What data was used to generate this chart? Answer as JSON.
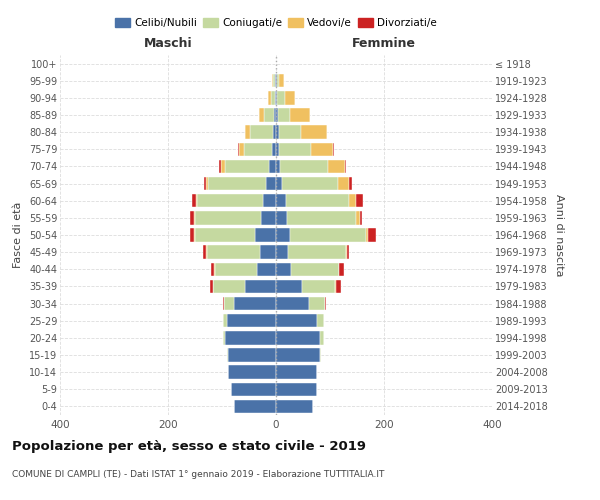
{
  "age_groups": [
    "0-4",
    "5-9",
    "10-14",
    "15-19",
    "20-24",
    "25-29",
    "30-34",
    "35-39",
    "40-44",
    "45-49",
    "50-54",
    "55-59",
    "60-64",
    "65-69",
    "70-74",
    "75-79",
    "80-84",
    "85-89",
    "90-94",
    "95-99",
    "100+"
  ],
  "birth_years": [
    "2014-2018",
    "2009-2013",
    "2004-2008",
    "1999-2003",
    "1994-1998",
    "1989-1993",
    "1984-1988",
    "1979-1983",
    "1974-1978",
    "1969-1973",
    "1964-1968",
    "1959-1963",
    "1954-1958",
    "1949-1953",
    "1944-1948",
    "1939-1943",
    "1934-1938",
    "1929-1933",
    "1924-1928",
    "1919-1923",
    "≤ 1918"
  ],
  "males_celibi": [
    78,
    83,
    88,
    88,
    95,
    90,
    78,
    58,
    35,
    30,
    38,
    28,
    24,
    18,
    13,
    8,
    6,
    3,
    2,
    2,
    0
  ],
  "males_coniugati": [
    0,
    0,
    0,
    2,
    4,
    8,
    18,
    58,
    78,
    98,
    112,
    122,
    122,
    108,
    82,
    52,
    42,
    20,
    8,
    4,
    0
  ],
  "males_vedovi": [
    0,
    0,
    0,
    0,
    0,
    0,
    0,
    0,
    1,
    1,
    1,
    2,
    2,
    4,
    6,
    8,
    10,
    8,
    4,
    2,
    0
  ],
  "males_divorziati": [
    0,
    0,
    0,
    0,
    0,
    1,
    2,
    7,
    7,
    7,
    9,
    7,
    7,
    4,
    4,
    2,
    0,
    0,
    0,
    0,
    0
  ],
  "females_nubili": [
    68,
    76,
    76,
    82,
    82,
    76,
    62,
    48,
    28,
    22,
    25,
    20,
    18,
    12,
    8,
    6,
    5,
    3,
    2,
    2,
    0
  ],
  "females_coniugate": [
    0,
    0,
    0,
    2,
    6,
    12,
    28,
    62,
    88,
    108,
    142,
    128,
    118,
    102,
    88,
    58,
    42,
    22,
    14,
    4,
    0
  ],
  "females_vedove": [
    0,
    0,
    0,
    0,
    0,
    0,
    0,
    1,
    1,
    2,
    4,
    8,
    12,
    22,
    32,
    42,
    48,
    38,
    20,
    9,
    0
  ],
  "females_divorziate": [
    0,
    0,
    0,
    0,
    0,
    1,
    2,
    9,
    9,
    4,
    14,
    4,
    14,
    4,
    2,
    2,
    0,
    0,
    0,
    0,
    0
  ],
  "color_celibi": "#4a72a8",
  "color_coniugati": "#c5d9a0",
  "color_vedovi": "#f0c060",
  "color_divorziati": "#cc2222",
  "title": "Popolazione per età, sesso e stato civile - 2019",
  "subtitle": "COMUNE DI CAMPLI (TE) - Dati ISTAT 1° gennaio 2019 - Elaborazione TUTTITALIA.IT",
  "legend_labels": [
    "Celibi/Nubili",
    "Coniugati/e",
    "Vedovi/e",
    "Divorziati/e"
  ],
  "header_maschi": "Maschi",
  "header_femmine": "Femmine",
  "ylabel_left": "Fasce di età",
  "ylabel_right": "Anni di nascita",
  "xlim": 400
}
